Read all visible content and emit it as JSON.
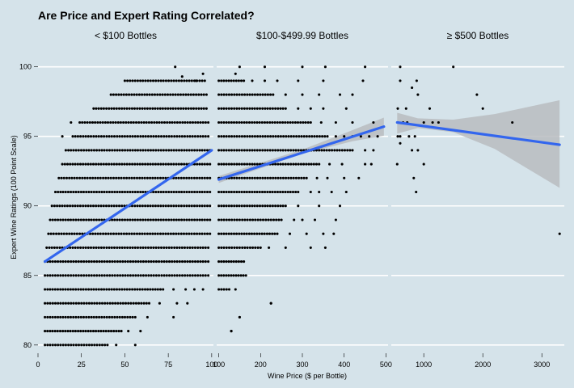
{
  "chart_data": {
    "type": "scatter",
    "title": "Are Price and Expert Rating Correlated?",
    "xlabel": "Wine Price ($ per Bottle)",
    "ylabel": "Expert Wine Ratings (100 Point Scale)",
    "ylim": [
      79.7,
      101.2
    ],
    "yticks": [
      80,
      85,
      90,
      95,
      100
    ],
    "grid": true,
    "colors": {
      "background": "#d5e3ea",
      "grid": "#ffffff",
      "points": "#000000",
      "trend": "#3366ee",
      "band": "#b8bcc0"
    },
    "panels": [
      {
        "label": "< $100 Bottles",
        "xlim": [
          0,
          101
        ],
        "xticks": [
          0,
          25,
          50,
          75,
          100
        ],
        "columns": [
          {
            "y": 80,
            "x0": 4,
            "x1": 40,
            "extra": [
              45,
              56
            ]
          },
          {
            "y": 81,
            "x0": 4,
            "x1": 48,
            "extra": [
              52,
              59
            ]
          },
          {
            "y": 82,
            "x0": 4,
            "x1": 56,
            "extra": [
              63,
              78
            ]
          },
          {
            "y": 83,
            "x0": 4,
            "x1": 64,
            "extra": [
              70,
              80,
              86
            ]
          },
          {
            "y": 84,
            "x0": 4,
            "x1": 72,
            "extra": [
              78,
              85,
              90,
              95
            ]
          },
          {
            "y": 85,
            "x0": 4,
            "x1": 98,
            "extra": []
          },
          {
            "y": 86,
            "x0": 4,
            "x1": 98,
            "extra": []
          },
          {
            "y": 87,
            "x0": 5,
            "x1": 98,
            "extra": []
          },
          {
            "y": 88,
            "x0": 6,
            "x1": 99,
            "extra": []
          },
          {
            "y": 89,
            "x0": 7,
            "x1": 99,
            "extra": []
          },
          {
            "y": 90,
            "x0": 8,
            "x1": 99,
            "extra": []
          },
          {
            "y": 91,
            "x0": 10,
            "x1": 99,
            "extra": []
          },
          {
            "y": 92,
            "x0": 12,
            "x1": 99,
            "extra": []
          },
          {
            "y": 93,
            "x0": 14,
            "x1": 99,
            "extra": []
          },
          {
            "y": 94,
            "x0": 16,
            "x1": 99,
            "extra": []
          },
          {
            "y": 95,
            "x0": 20,
            "x1": 98,
            "extra": [
              14
            ]
          },
          {
            "y": 96,
            "x0": 24,
            "x1": 98,
            "extra": [
              19
            ]
          },
          {
            "y": 97,
            "x0": 32,
            "x1": 97,
            "extra": []
          },
          {
            "y": 98,
            "x0": 42,
            "x1": 97,
            "extra": []
          },
          {
            "y": 99,
            "x0": 50,
            "x1": 96,
            "extra": []
          }
        ],
        "points": [
          [
            79,
            100
          ],
          [
            95,
            99.5
          ],
          [
            91,
            99
          ],
          [
            83,
            99.3
          ]
        ],
        "trend": {
          "x0": 4,
          "y0": 86.0,
          "x1": 100,
          "y1": 94.0
        },
        "band": null
      },
      {
        "label": "$100-$499.99 Bottles",
        "xlim": [
          95,
          505
        ],
        "xticks": [
          100,
          200,
          300,
          400,
          500
        ],
        "columns": [
          {
            "y": 81,
            "x0": 130,
            "x1": 130,
            "extra": []
          },
          {
            "y": 82,
            "x0": 150,
            "x1": 150,
            "extra": []
          },
          {
            "y": 83,
            "x0": 225,
            "x1": 225,
            "extra": []
          },
          {
            "y": 84,
            "x0": 100,
            "x1": 125,
            "extra": [
              140
            ]
          },
          {
            "y": 85,
            "x0": 100,
            "x1": 165,
            "extra": []
          },
          {
            "y": 86,
            "x0": 100,
            "x1": 160,
            "extra": []
          },
          {
            "y": 87,
            "x0": 100,
            "x1": 200,
            "extra": [
              220,
              260,
              320,
              355
            ]
          },
          {
            "y": 88,
            "x0": 100,
            "x1": 240,
            "extra": [
              270,
              310,
              350,
              375
            ]
          },
          {
            "y": 89,
            "x0": 100,
            "x1": 250,
            "extra": [
              280,
              300,
              330,
              380
            ]
          },
          {
            "y": 90,
            "x0": 100,
            "x1": 260,
            "extra": [
              290,
              340,
              390
            ]
          },
          {
            "y": 91,
            "x0": 100,
            "x1": 290,
            "extra": [
              320,
              340,
              370,
              405
            ]
          },
          {
            "y": 92,
            "x0": 100,
            "x1": 310,
            "extra": [
              335,
              360,
              400,
              435
            ]
          },
          {
            "y": 93,
            "x0": 100,
            "x1": 340,
            "extra": [
              365,
              395,
              450,
              465
            ]
          },
          {
            "y": 94,
            "x0": 100,
            "x1": 420,
            "extra": [
              450,
              470
            ]
          },
          {
            "y": 95,
            "x0": 100,
            "x1": 360,
            "extra": [
              380,
              400,
              420,
              440,
              460,
              480
            ]
          },
          {
            "y": 96,
            "x0": 100,
            "x1": 320,
            "extra": [
              345,
              380,
              420,
              470
            ]
          },
          {
            "y": 97,
            "x0": 100,
            "x1": 260,
            "extra": [
              290,
              320,
              350,
              405
            ]
          },
          {
            "y": 98,
            "x0": 100,
            "x1": 230,
            "extra": [
              260,
              300,
              340,
              390,
              420
            ]
          },
          {
            "y": 99,
            "x0": 100,
            "x1": 160,
            "extra": [
              180,
              210,
              240,
              290,
              350,
              445
            ]
          }
        ],
        "points": [
          [
            150,
            100
          ],
          [
            210,
            100
          ],
          [
            300,
            100
          ],
          [
            355,
            100
          ],
          [
            450,
            100
          ],
          [
            140,
            99.5
          ]
        ],
        "trend": {
          "x0": 100,
          "y0": 91.9,
          "x1": 495,
          "y1": 95.7
        },
        "band": {
          "upper": [
            [
              100,
              92.15
            ],
            [
              300,
              94.05
            ],
            [
              420,
              95.45
            ],
            [
              495,
              96.35
            ]
          ],
          "lower": [
            [
              100,
              91.65
            ],
            [
              300,
              93.75
            ],
            [
              420,
              94.65
            ],
            [
              495,
              95.05
            ]
          ]
        }
      },
      {
        "label": "≥ $500 Bottles",
        "xlim": [
          450,
          3380
        ],
        "xticks": [
          1000,
          2000,
          3000
        ],
        "columns": [],
        "points": [
          [
            600,
            100
          ],
          [
            1500,
            100
          ],
          [
            600,
            99
          ],
          [
            880,
            99
          ],
          [
            800,
            98.5
          ],
          [
            900,
            98
          ],
          [
            1900,
            98
          ],
          [
            560,
            97
          ],
          [
            700,
            97
          ],
          [
            1100,
            97
          ],
          [
            2000,
            97
          ],
          [
            560,
            96
          ],
          [
            650,
            96
          ],
          [
            720,
            96
          ],
          [
            1000,
            96
          ],
          [
            1150,
            96
          ],
          [
            1250,
            96
          ],
          [
            2500,
            96
          ],
          [
            560,
            95
          ],
          [
            600,
            95
          ],
          [
            750,
            95
          ],
          [
            850,
            95
          ],
          [
            600,
            94.5
          ],
          [
            800,
            94
          ],
          [
            900,
            94
          ],
          [
            550,
            93
          ],
          [
            1000,
            93
          ],
          [
            830,
            92
          ],
          [
            870,
            91
          ],
          [
            3300,
            88
          ]
        ],
        "trend": {
          "x0": 550,
          "y0": 96.0,
          "x1": 3300,
          "y1": 94.4
        },
        "band": {
          "upper": [
            [
              550,
              96.7
            ],
            [
              900,
              96.3
            ],
            [
              1500,
              96.2
            ],
            [
              2200,
              96.6
            ],
            [
              3300,
              97.6
            ]
          ],
          "lower": [
            [
              550,
              95.2
            ],
            [
              900,
              95.6
            ],
            [
              1500,
              95.3
            ],
            [
              2200,
              94.1
            ],
            [
              3300,
              91.3
            ]
          ]
        }
      }
    ]
  }
}
